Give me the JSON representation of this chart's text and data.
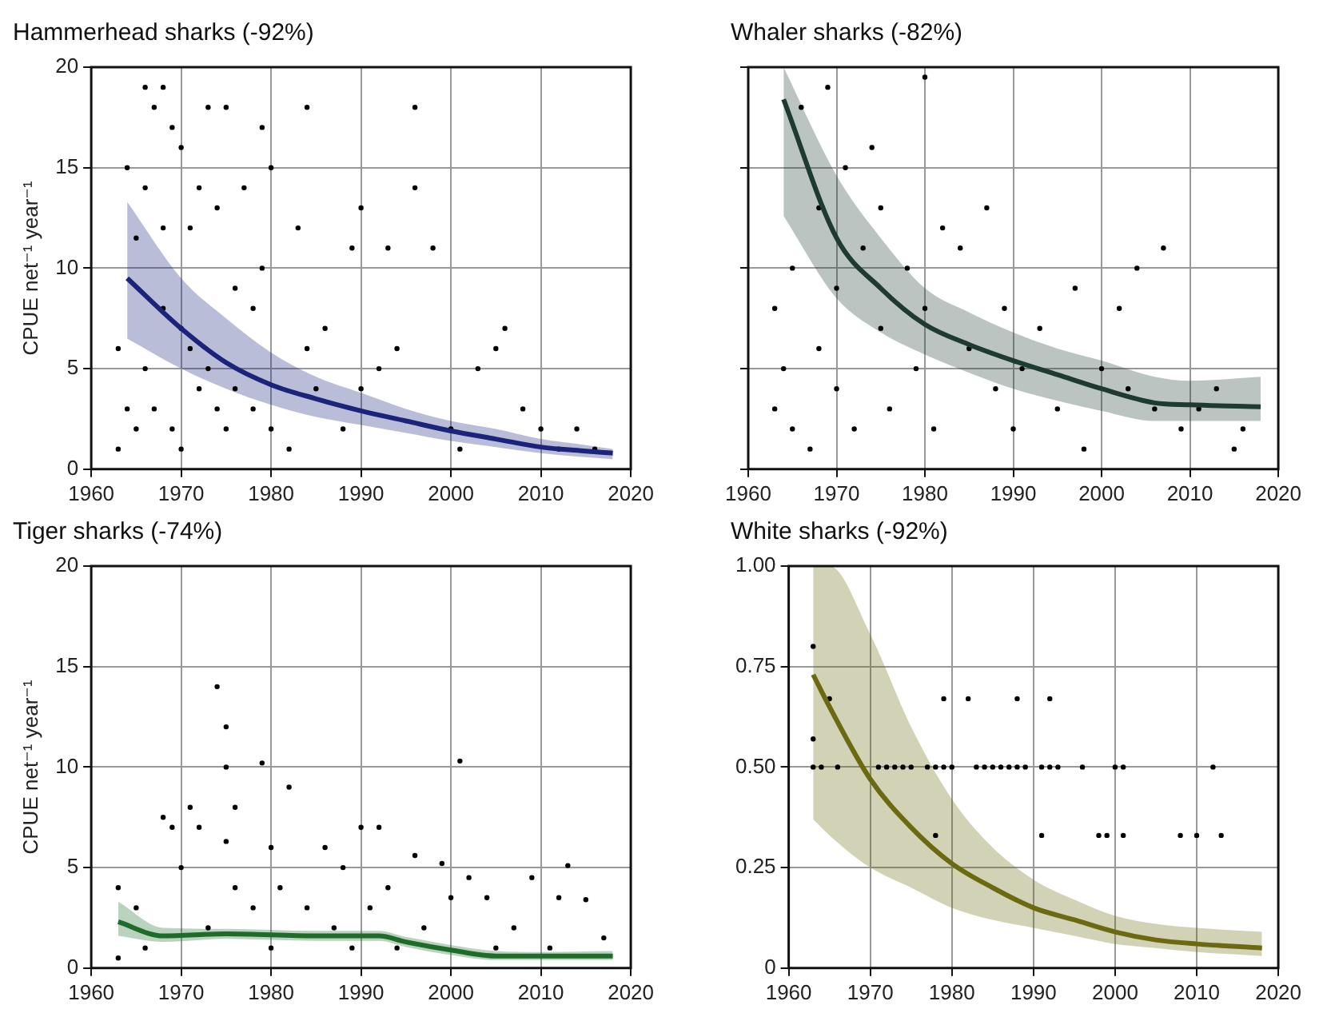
{
  "chart_data": [
    {
      "type": "scatter",
      "title": "Hammerhead sharks (-92%)",
      "ylabel": "CPUE net⁻¹ year⁻¹",
      "xlim": [
        1960,
        2020
      ],
      "xticks": [
        1960,
        1970,
        1980,
        1990,
        2000,
        2010,
        2020
      ],
      "ylim": [
        0,
        20
      ],
      "yticks": [
        0,
        5,
        10,
        15,
        20
      ],
      "grid": true,
      "legend": false,
      "series": [
        {
          "type": "scatter",
          "color": "#000000",
          "marker": "circle",
          "x": [
            1963,
            1963,
            1964,
            1964,
            1965,
            1965,
            1966,
            1966,
            1966,
            1967,
            1967,
            1968,
            1968,
            1968,
            1969,
            1969,
            1970,
            1970,
            1970,
            1971,
            1971,
            1972,
            1972,
            1973,
            1973,
            1974,
            1974,
            1975,
            1975,
            1976,
            1976,
            1977,
            1978,
            1978,
            1979,
            1979,
            1980,
            1980,
            1982,
            1983,
            1984,
            1984,
            1985,
            1986,
            1988,
            1989,
            1990,
            1990,
            1992,
            1993,
            1994,
            1996,
            1996,
            1998,
            2000,
            2001,
            2003,
            2005,
            2006,
            2008,
            2010,
            2012,
            2014,
            2016
          ],
          "values": [
            1,
            6,
            3,
            15,
            2,
            11.5,
            5,
            14,
            19,
            3,
            18,
            8,
            12,
            19,
            2,
            17,
            1,
            7,
            16,
            6,
            12,
            4,
            14,
            5,
            18,
            3,
            13,
            2,
            18,
            4,
            9,
            14,
            3,
            8,
            10,
            17,
            2,
            15,
            1,
            12,
            6,
            18,
            4,
            7,
            2,
            11,
            4,
            13,
            5,
            11,
            6,
            14,
            18,
            11,
            2,
            1,
            5,
            6,
            7,
            3,
            2,
            1,
            2,
            1
          ]
        },
        {
          "type": "line",
          "color": "#1b237a",
          "x": [
            1964,
            1970,
            1975,
            1980,
            1985,
            1990,
            1995,
            2000,
            2005,
            2010,
            2015,
            2018
          ],
          "values": [
            9.5,
            7.0,
            5.3,
            4.2,
            3.5,
            2.9,
            2.4,
            1.9,
            1.5,
            1.1,
            0.9,
            0.8
          ],
          "lower": [
            6.5,
            5.0,
            4.0,
            3.2,
            2.6,
            2.2,
            1.8,
            1.4,
            1.1,
            0.8,
            0.6,
            0.5
          ],
          "upper": [
            13.3,
            9.5,
            7.5,
            5.8,
            4.6,
            3.8,
            3.0,
            2.4,
            2.0,
            1.5,
            1.2,
            1.0
          ]
        }
      ]
    },
    {
      "type": "scatter",
      "title": "Whaler sharks (-82%)",
      "xlim": [
        1960,
        2020
      ],
      "xticks": [
        1960,
        1970,
        1980,
        1990,
        2000,
        2010,
        2020
      ],
      "ylim": [
        0,
        20
      ],
      "yticks": [
        {
          "value": 0,
          "label": null
        },
        {
          "value": 5,
          "label": null
        },
        {
          "value": 10,
          "label": null
        },
        {
          "value": 15,
          "label": null
        },
        {
          "value": 20,
          "label": null
        }
      ],
      "tick_labels": "x",
      "grid": true,
      "legend": false,
      "series": [
        {
          "type": "scatter",
          "color": "#000000",
          "marker": "circle",
          "x": [
            1963,
            1963,
            1964,
            1965,
            1965,
            1966,
            1967,
            1968,
            1968,
            1969,
            1970,
            1970,
            1971,
            1972,
            1973,
            1974,
            1975,
            1975,
            1976,
            1978,
            1979,
            1980,
            1980,
            1981,
            1982,
            1984,
            1985,
            1987,
            1988,
            1989,
            1990,
            1991,
            1993,
            1995,
            1997,
            1998,
            2000,
            2002,
            2003,
            2004,
            2006,
            2007,
            2009,
            2011,
            2013,
            2015,
            2016
          ],
          "values": [
            3,
            8,
            5,
            2,
            10,
            18,
            1,
            6,
            13,
            19,
            4,
            9,
            15,
            2,
            11,
            16,
            7,
            13,
            3,
            10,
            5,
            8,
            19.5,
            2,
            12,
            11,
            6,
            13,
            4,
            8,
            2,
            5,
            7,
            3,
            9,
            1,
            5,
            8,
            4,
            10,
            3,
            11,
            2,
            3,
            4,
            1,
            2
          ]
        },
        {
          "type": "line",
          "color": "#1e3a32",
          "x": [
            1964,
            1970,
            1975,
            1980,
            1985,
            1990,
            1995,
            2000,
            2006,
            2010,
            2018
          ],
          "values": [
            18.4,
            11.5,
            9.0,
            7.2,
            6.2,
            5.4,
            4.7,
            4.0,
            3.3,
            3.2,
            3.1
          ],
          "lower": [
            12.6,
            8.5,
            6.8,
            5.7,
            4.8,
            4.0,
            3.4,
            2.9,
            2.4,
            2.4,
            2.4
          ],
          "upper": [
            20,
            14.6,
            11.5,
            9.0,
            7.8,
            6.8,
            6.0,
            5.4,
            4.6,
            4.4,
            4.6
          ]
        }
      ]
    },
    {
      "type": "scatter",
      "title": "Tiger sharks (-74%)",
      "ylabel": "CPUE net⁻¹ year⁻¹",
      "xlim": [
        1960,
        2020
      ],
      "xticks": [
        1960,
        1970,
        1980,
        1990,
        2000,
        2010,
        2020
      ],
      "ylim": [
        0,
        20
      ],
      "yticks": [
        0,
        5,
        10,
        15,
        20
      ],
      "grid": true,
      "legend": false,
      "series": [
        {
          "type": "scatter",
          "color": "#000000",
          "marker": "circle",
          "x": [
            1963,
            1963,
            1965,
            1966,
            1968,
            1969,
            1970,
            1971,
            1972,
            1973,
            1974,
            1975,
            1975,
            1975,
            1976,
            1976,
            1978,
            1979,
            1980,
            1980,
            1981,
            1982,
            1984,
            1986,
            1987,
            1988,
            1989,
            1990,
            1991,
            1992,
            1993,
            1994,
            1996,
            1997,
            1999,
            2000,
            2001,
            2002,
            2004,
            2005,
            2007,
            2009,
            2011,
            2012,
            2013,
            2015,
            2017
          ],
          "values": [
            0.5,
            4,
            3,
            1,
            7.5,
            7,
            5,
            8,
            7,
            2,
            14,
            6.3,
            10,
            12,
            8,
            4,
            3,
            10.2,
            6,
            1,
            4,
            9,
            3,
            6,
            2,
            5,
            1,
            7,
            3,
            7,
            4,
            1,
            5.6,
            2,
            5.2,
            3.5,
            10.3,
            4.5,
            3.5,
            1,
            2,
            4.5,
            1,
            3.5,
            5.1,
            3.4,
            1.5
          ]
        },
        {
          "type": "line",
          "color": "#1e6b2a",
          "x": [
            1963,
            1968,
            1975,
            1985,
            1992,
            1995,
            2000,
            2005,
            2010,
            2018
          ],
          "values": [
            2.3,
            1.6,
            1.7,
            1.6,
            1.6,
            1.3,
            0.9,
            0.6,
            0.6,
            0.6
          ],
          "lower": [
            1.6,
            1.3,
            1.45,
            1.35,
            1.35,
            1.05,
            0.65,
            0.4,
            0.4,
            0.4
          ],
          "upper": [
            3.3,
            2.0,
            1.95,
            1.85,
            1.85,
            1.55,
            1.15,
            0.85,
            0.8,
            0.85
          ]
        }
      ]
    },
    {
      "type": "scatter",
      "title": "White sharks (-92%)",
      "xlim": [
        1960,
        2020
      ],
      "xticks": [
        1960,
        1970,
        1980,
        1990,
        2000,
        2010,
        2020
      ],
      "ylim": [
        0,
        1
      ],
      "yticks": [
        0,
        {
          "value": 0.25,
          "label": "0.25"
        },
        {
          "value": 0.5,
          "label": "0.50"
        },
        {
          "value": 0.75,
          "label": "0.75"
        },
        {
          "value": 1,
          "label": "1.00"
        }
      ],
      "grid": true,
      "legend": false,
      "series": [
        {
          "type": "scatter",
          "color": "#000000",
          "marker": "circle",
          "x": [
            1963,
            1963,
            1963,
            1964,
            1965,
            1966,
            1971,
            1972,
            1973,
            1974,
            1975,
            1977,
            1978,
            1978,
            1979,
            1979,
            1980,
            1982,
            1983,
            1984,
            1985,
            1986,
            1987,
            1988,
            1988,
            1989,
            1991,
            1991,
            1992,
            1992,
            1993,
            1996,
            1998,
            1999,
            2000,
            2001,
            2001,
            2008,
            2010,
            2012,
            2013
          ],
          "values": [
            0.8,
            0.57,
            0.5,
            0.5,
            0.67,
            0.5,
            0.5,
            0.5,
            0.5,
            0.5,
            0.5,
            0.5,
            0.5,
            0.33,
            0.67,
            0.5,
            0.5,
            0.67,
            0.5,
            0.5,
            0.5,
            0.5,
            0.5,
            0.67,
            0.5,
            0.5,
            0.5,
            0.33,
            0.67,
            0.5,
            0.5,
            0.5,
            0.33,
            0.33,
            0.5,
            0.5,
            0.33,
            0.33,
            0.33,
            0.5,
            0.33
          ]
        },
        {
          "type": "line",
          "color": "#6b6a10",
          "x": [
            1963,
            1965,
            1970,
            1975,
            1980,
            1985,
            1990,
            1995,
            2000,
            2005,
            2010,
            2018
          ],
          "values": [
            0.73,
            0.65,
            0.47,
            0.35,
            0.26,
            0.2,
            0.15,
            0.12,
            0.09,
            0.07,
            0.06,
            0.05
          ],
          "lower": [
            0.37,
            0.33,
            0.25,
            0.2,
            0.15,
            0.12,
            0.1,
            0.08,
            0.06,
            0.05,
            0.04,
            0.03
          ],
          "upper": [
            1,
            1,
            0.83,
            0.6,
            0.42,
            0.3,
            0.22,
            0.17,
            0.13,
            0.11,
            0.1,
            0.09
          ]
        }
      ]
    }
  ]
}
